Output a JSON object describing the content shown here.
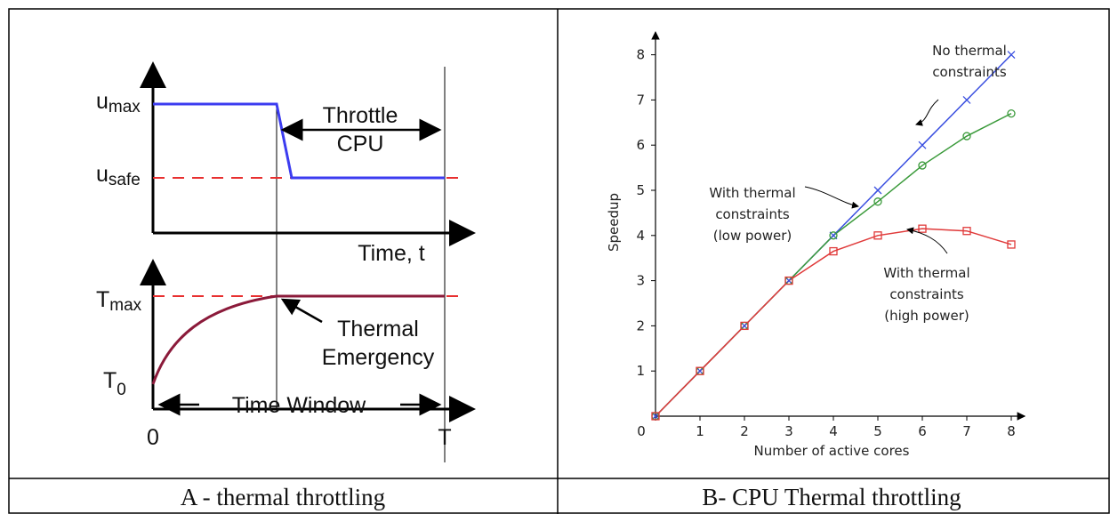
{
  "panel_a": {
    "umax": {
      "symbol": "u",
      "sub": "max"
    },
    "usafe": {
      "symbol": "u",
      "sub": "safe"
    },
    "throttle": [
      "Throttle",
      "CPU"
    ],
    "time_t": "Time, t",
    "tmax": {
      "symbol": "T",
      "sub": "max"
    },
    "t0": {
      "symbol": "T",
      "sub": "0"
    },
    "emergency": [
      "Thermal",
      "Emergency"
    ],
    "time_window": "Time Window",
    "zero": "0",
    "end": "T"
  },
  "captions": [
    "A - thermal throttling",
    "B- CPU Thermal throttling"
  ],
  "chart_data": {
    "type": "line",
    "x_label": "Number of active cores",
    "y_label": "Speedup",
    "x": [
      0,
      1,
      2,
      3,
      4,
      5,
      6,
      7,
      8
    ],
    "xlim": [
      0,
      8.3
    ],
    "ylim": [
      0,
      8.5
    ],
    "xticks": [
      0,
      1,
      2,
      3,
      4,
      5,
      6,
      7,
      8
    ],
    "yticks": [
      1,
      2,
      3,
      4,
      5,
      6,
      7,
      8
    ],
    "series": [
      {
        "name": "No thermal constraints",
        "color": "#3a4fe0",
        "marker": "x",
        "values": [
          0,
          1,
          2,
          3,
          4,
          5,
          6,
          7,
          8
        ]
      },
      {
        "name": "With thermal constraints (low power)",
        "color": "#3a9a3a",
        "marker": "o",
        "values": [
          0,
          1,
          2,
          3,
          4,
          4.75,
          5.55,
          6.2,
          6.7
        ]
      },
      {
        "name": "With thermal constraints (high power)",
        "color": "#e03a3a",
        "marker": "s",
        "values": [
          0,
          1,
          2,
          3,
          3.65,
          4.0,
          4.15,
          4.1,
          3.8
        ]
      }
    ],
    "annotations": [
      {
        "lines": [
          "No thermal",
          "constraints"
        ]
      },
      {
        "lines": [
          "With thermal",
          "constraints",
          "(low power)"
        ]
      },
      {
        "lines": [
          "With thermal",
          "constraints",
          "(high power)"
        ]
      }
    ]
  }
}
